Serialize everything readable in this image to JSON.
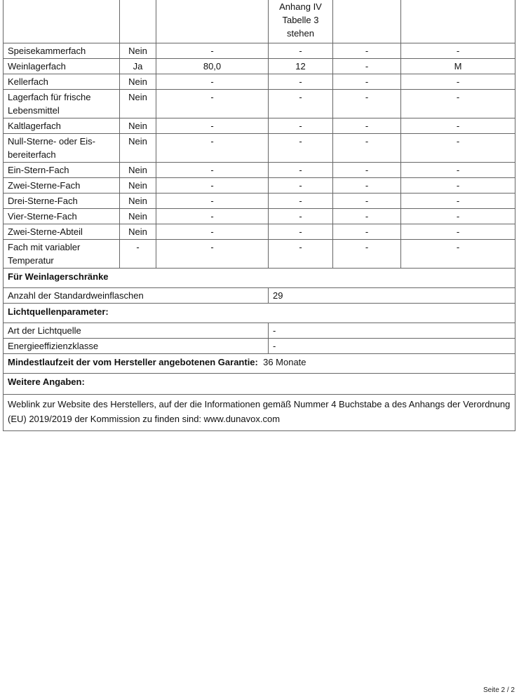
{
  "table": {
    "header_fragment": "Anhang IV\nTabelle 3\nstehen",
    "rows": [
      {
        "name": "Speisekammerfach",
        "present": "Nein",
        "c1": "-",
        "c2": "-",
        "c3": "-",
        "c4": "-"
      },
      {
        "name": "Weinlagerfach",
        "present": "Ja",
        "c1": "80,0",
        "c2": "12",
        "c3": "-",
        "c4": "M"
      },
      {
        "name": "Kellerfach",
        "present": "Nein",
        "c1": "-",
        "c2": "-",
        "c3": "-",
        "c4": "-"
      },
      {
        "name": "Lagerfach für frische Lebensmittel",
        "present": "Nein",
        "c1": "-",
        "c2": "-",
        "c3": "-",
        "c4": "-"
      },
      {
        "name": "Kaltlagerfach",
        "present": "Nein",
        "c1": "-",
        "c2": "-",
        "c3": "-",
        "c4": "-"
      },
      {
        "name": "Null-Sterne- oder Eis-bereiterfach",
        "present": "Nein",
        "c1": "-",
        "c2": "-",
        "c3": "-",
        "c4": "-"
      },
      {
        "name": "Ein-Stern-Fach",
        "present": "Nein",
        "c1": "-",
        "c2": "-",
        "c3": "-",
        "c4": "-"
      },
      {
        "name": "Zwei-Sterne-Fach",
        "present": "Nein",
        "c1": "-",
        "c2": "-",
        "c3": "-",
        "c4": "-"
      },
      {
        "name": "Drei-Sterne-Fach",
        "present": "Nein",
        "c1": "-",
        "c2": "-",
        "c3": "-",
        "c4": "-"
      },
      {
        "name": "Vier-Sterne-Fach",
        "present": "Nein",
        "c1": "-",
        "c2": "-",
        "c3": "-",
        "c4": "-"
      },
      {
        "name": "Zwei-Sterne-Abteil",
        "present": "Nein",
        "c1": "-",
        "c2": "-",
        "c3": "-",
        "c4": "-"
      },
      {
        "name": "Fach mit variabler Temperatur",
        "present": "-",
        "c1": "-",
        "c2": "-",
        "c3": "-",
        "c4": "-"
      }
    ]
  },
  "wine": {
    "heading": "Für Weinlagerschränke",
    "bottles_label": "Anzahl der Standardweinflaschen",
    "bottles_value": "29"
  },
  "light": {
    "heading": "Lichtquellenparameter:",
    "type_label": "Art der Lichtquelle",
    "type_value": "-",
    "class_label": "Energieeffizienzklasse",
    "class_value": "-"
  },
  "warranty": {
    "label": "Mindestlaufzeit der vom Hersteller angebotenen Garantie:",
    "value": "36 Monate"
  },
  "more": {
    "heading": "Weitere Angaben:",
    "text": "Weblink zur Website des Herstellers, auf der die Informationen gemäß Nummer 4 Buchstabe a des Anhangs der Verordnung (EU) 2019/2019 der Kommission zu finden sind:  www.dunavox.com"
  },
  "footer": {
    "page": "Seite 2 / 2"
  }
}
